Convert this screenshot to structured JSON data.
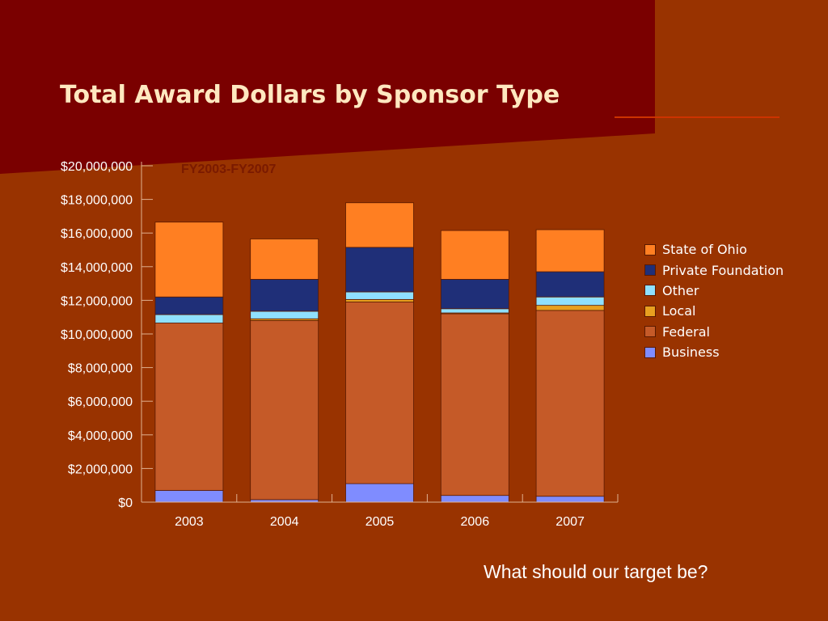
{
  "slide": {
    "title": "Total Award Dollars by Sponsor Type",
    "question": "What should our target be?"
  },
  "colors": {
    "background": "#993300",
    "banner": "#7A0000",
    "title": "#FFE8C0"
  },
  "chart_data": {
    "type": "bar",
    "stacked": true,
    "title": "FY2003-FY2007",
    "categories": [
      "2003",
      "2004",
      "2005",
      "2006",
      "2007"
    ],
    "ylim": [
      0,
      20000000
    ],
    "yticks": [
      "$0",
      "$2,000,000",
      "$4,000,000",
      "$6,000,000",
      "$8,000,000",
      "$10,000,000",
      "$12,000,000",
      "$14,000,000",
      "$16,000,000",
      "$18,000,000",
      "$20,000,000"
    ],
    "legend_position": "right",
    "grid": false,
    "series": [
      {
        "name": "Business",
        "color": "#7F8CFF",
        "values": [
          700000,
          150000,
          1100000,
          400000,
          350000
        ]
      },
      {
        "name": "Federal",
        "color": "#C55A28",
        "values": [
          9950000,
          10650000,
          10800000,
          10800000,
          11050000
        ]
      },
      {
        "name": "Local",
        "color": "#E8A020",
        "values": [
          0,
          100000,
          150000,
          50000,
          300000
        ]
      },
      {
        "name": "Other",
        "color": "#8FE0FF",
        "values": [
          500000,
          450000,
          450000,
          250000,
          500000
        ]
      },
      {
        "name": "Private Foundation",
        "color": "#1F2F78",
        "values": [
          1050000,
          1900000,
          2650000,
          1750000,
          1500000
        ]
      },
      {
        "name": "State of Ohio",
        "color": "#FF7F22",
        "values": [
          4450000,
          2400000,
          2650000,
          2900000,
          2500000
        ]
      }
    ]
  }
}
